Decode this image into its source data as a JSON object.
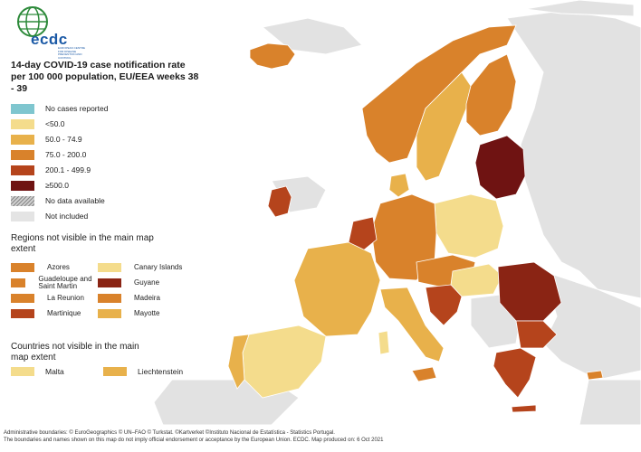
{
  "logo": {
    "text": "ecdc",
    "subtitle": "EUROPEAN CENTRE FOR DISEASE PREVENTION AND CONTROL"
  },
  "title": "14-day COVID-19 case notification rate per 100 000 population, EU/EEA weeks 38 - 39",
  "colors": {
    "no_cases": "#7fc6cf",
    "lt50": "#f4dc8c",
    "r50_75": "#e8b14b",
    "r75_200": "#d9822b",
    "r200_500": "#b5441c",
    "ge500": "#6f1312",
    "no_data": "#cccccc",
    "not_included": "#e4e4e4",
    "sea": "#ffffff",
    "border": "#ffffff"
  },
  "legend": {
    "items": [
      {
        "label": "No cases reported",
        "color": "#7fc6cf"
      },
      {
        "label": "<50.0",
        "color": "#f4dc8c"
      },
      {
        "label": "50.0 - 74.9",
        "color": "#e8b14b"
      },
      {
        "label": "75.0 - 200.0",
        "color": "#d9822b"
      },
      {
        "label": "200.1 - 499.9",
        "color": "#b5441c"
      },
      {
        "label": "≥500.0",
        "color": "#6f1312"
      },
      {
        "label": "No data available",
        "color": "hatch"
      },
      {
        "label": "Not included",
        "color": "#e4e4e4"
      }
    ]
  },
  "regions_section": {
    "title": "Regions not visible in the main map extent",
    "items": [
      {
        "label": "Azores",
        "color": "#d9822b"
      },
      {
        "label": "Canary Islands",
        "color": "#f4dc8c"
      },
      {
        "label": "Guadeloupe and Saint Martin",
        "color": "#d9822b"
      },
      {
        "label": "Guyane",
        "color": "#8a2414"
      },
      {
        "label": "La Reunion",
        "color": "#d9822b"
      },
      {
        "label": "Madeira",
        "color": "#d9822b"
      },
      {
        "label": "Martinique",
        "color": "#b5441c"
      },
      {
        "label": "Mayotte",
        "color": "#e8b14b"
      }
    ]
  },
  "countries_section": {
    "title": "Countries not visible in the main map extent",
    "items": [
      {
        "label": "Malta",
        "color": "#f4dc8c"
      },
      {
        "label": "Liechtenstein",
        "color": "#e8b14b"
      }
    ]
  },
  "footer": {
    "line1": "Administrative boundaries: © EuroGeographics © UN–FAO © Turkstat. ©Kartverket ©Instituto Nacional de Estatística - Statistics Portugal.",
    "line2": "The boundaries and names shown on this map do not imply official endorsement or acceptance by the European Union. ECDC. Map produced on: 6 Oct 2021"
  }
}
